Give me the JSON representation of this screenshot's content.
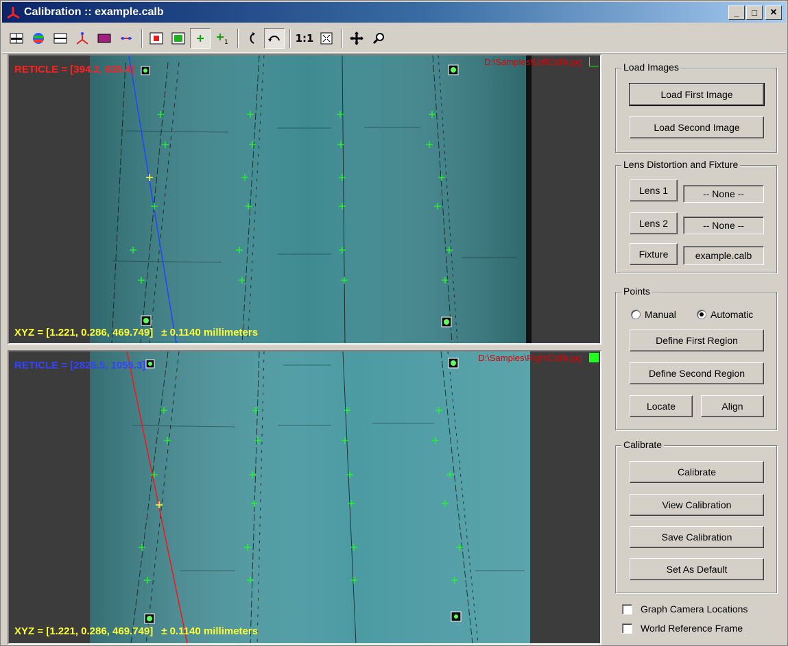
{
  "window": {
    "title": "Calibration :: example.calb",
    "minimize_glyph": "_",
    "maximize_glyph": "□",
    "close_glyph": "✕"
  },
  "toolbar": {
    "one_to_one_label": "1:1",
    "buttons": [
      "split-view-icon",
      "color-map-icon",
      "split-horizontal-icon",
      "axes-icon",
      "image-icon",
      "line-icon",
      "fit-region-icon",
      "green-region-icon",
      "add-point-icon",
      "add-point-numbered-icon",
      "rotate-icon",
      "undo-icon",
      "one-to-one-icon",
      "fit-to-window-icon",
      "pan-icon",
      "zoom-icon"
    ]
  },
  "views": {
    "top": {
      "reticle": "RETICLE = [394.2, 835.4]",
      "reticle_color": "#ff2020",
      "file": "D:\\Samples\\LeftCalib.jpg",
      "xyz": "XYZ = [1.221, 0.286, 469.749]",
      "error": "± 0.1140 millimeters",
      "epipolar_color": "#2244ff"
    },
    "bottom": {
      "reticle": "RETICLE = [2825.5, 1055.3]",
      "reticle_color": "#3344ff",
      "file": "D:\\Samples\\RightCalib.jpg",
      "xyz": "XYZ = [1.221, 0.286, 469.749]",
      "error": "± 0.1140 millimeters",
      "epipolar_color": "#ff1010"
    }
  },
  "panel": {
    "load_images": {
      "title": "Load Images",
      "load_first": "Load First Image",
      "load_second": "Load Second Image"
    },
    "lens": {
      "title": "Lens Distortion and Fixture",
      "lens1": "Lens 1",
      "lens1_value": "-- None --",
      "lens2": "Lens 2",
      "lens2_value": "-- None --",
      "fixture": "Fixture",
      "fixture_value": "example.calb"
    },
    "points": {
      "title": "Points",
      "manual": "Manual",
      "automatic": "Automatic",
      "selected": "automatic",
      "define_first": "Define First Region",
      "define_second": "Define Second Region",
      "locate": "Locate",
      "align": "Align"
    },
    "calibrate": {
      "title": "Calibrate",
      "calibrate": "Calibrate",
      "view": "View Calibration",
      "save": "Save Calibration",
      "set_default": "Set As Default"
    },
    "graph_camera": "Graph Camera Locations",
    "world_frame": "World Reference Frame"
  }
}
